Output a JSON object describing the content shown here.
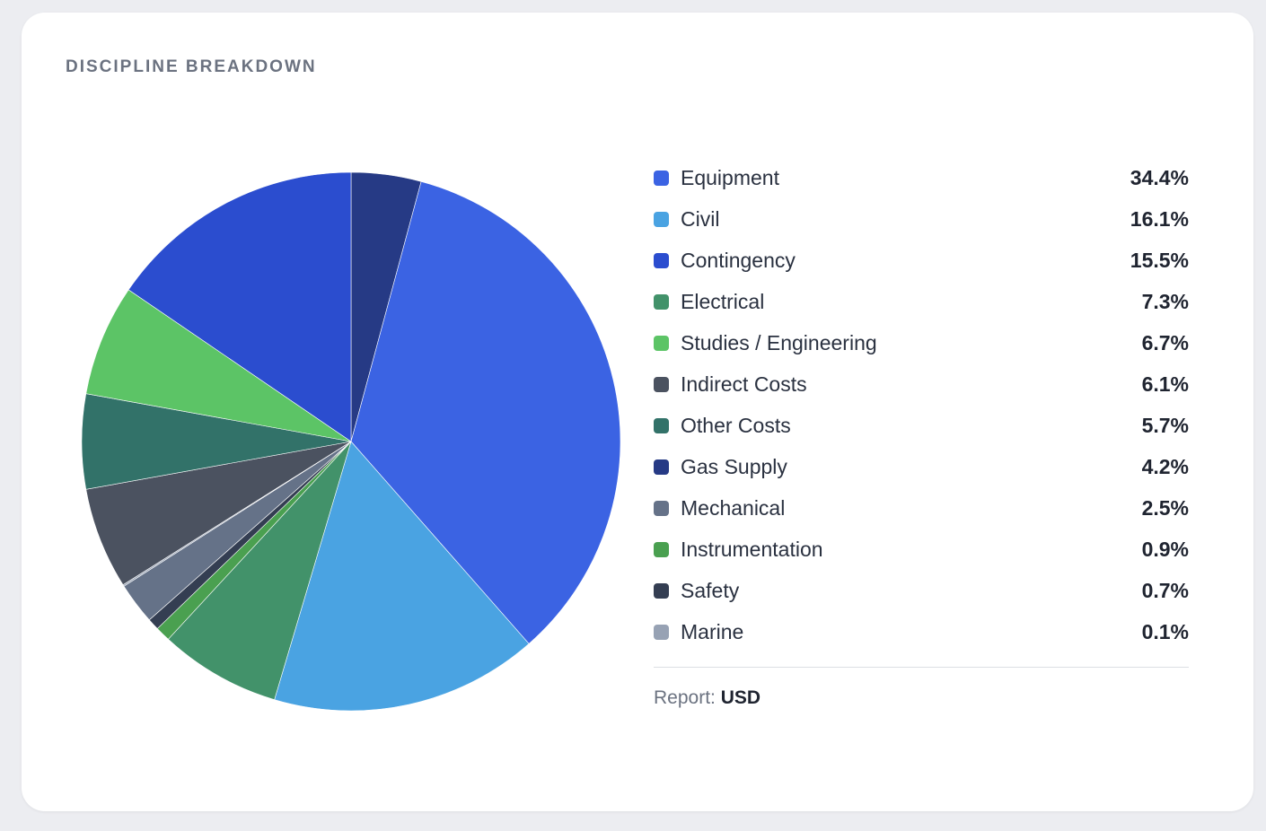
{
  "title": "DISCIPLINE BREAKDOWN",
  "chart_data": {
    "type": "pie",
    "title": "Discipline Breakdown",
    "unit": "%",
    "legend_placement": "right",
    "legend": [
      {
        "label": "Equipment",
        "value": 34.4,
        "display": "34.4%",
        "color": "#3b63e3"
      },
      {
        "label": "Civil",
        "value": 16.1,
        "display": "16.1%",
        "color": "#4aa3e2"
      },
      {
        "label": "Contingency",
        "value": 15.5,
        "display": "15.5%",
        "color": "#2b4dcf"
      },
      {
        "label": "Electrical",
        "value": 7.3,
        "display": "7.3%",
        "color": "#42926a"
      },
      {
        "label": "Studies / Engineering",
        "value": 6.7,
        "display": "6.7%",
        "color": "#5cc466"
      },
      {
        "label": "Indirect Costs",
        "value": 6.1,
        "display": "6.1%",
        "color": "#4b5260"
      },
      {
        "label": "Other Costs",
        "value": 5.7,
        "display": "5.7%",
        "color": "#327269"
      },
      {
        "label": "Gas Supply",
        "value": 4.2,
        "display": "4.2%",
        "color": "#263a85"
      },
      {
        "label": "Mechanical",
        "value": 2.5,
        "display": "2.5%",
        "color": "#657288"
      },
      {
        "label": "Instrumentation",
        "value": 0.9,
        "display": "0.9%",
        "color": "#4aa050"
      },
      {
        "label": "Safety",
        "value": 0.7,
        "display": "0.7%",
        "color": "#343e52"
      },
      {
        "label": "Marine",
        "value": 0.1,
        "display": "0.1%",
        "color": "#97a2b4"
      }
    ],
    "slice_order_clockwise_from_top": [
      "Gas Supply",
      "Equipment",
      "Civil",
      "Electrical",
      "Instrumentation",
      "Safety",
      "Mechanical",
      "Marine",
      "Indirect Costs",
      "Other Costs",
      "Studies / Engineering",
      "Contingency"
    ]
  },
  "footer": {
    "report_label": "Report:",
    "report_value": "USD"
  }
}
